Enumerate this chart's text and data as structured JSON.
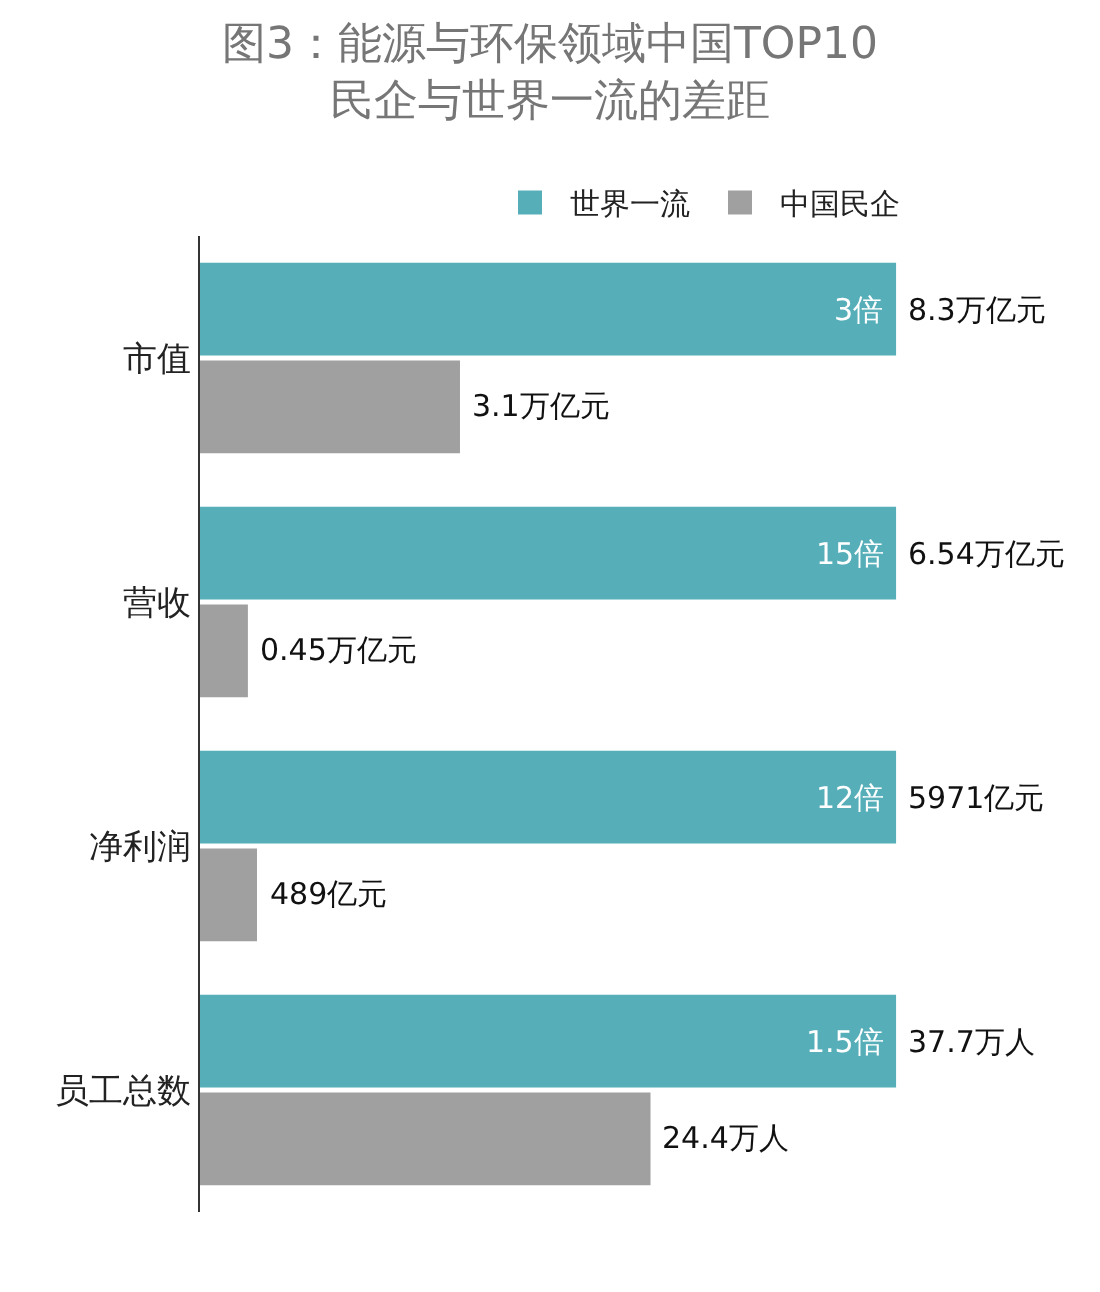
{
  "chart_data": [
    {
      "type": "bar",
      "orientation": "horizontal",
      "title": "图3：能源与环保领域中国TOP10\n民企与世界一流的差距",
      "categories": [
        "市值"
      ],
      "series": [
        {
          "name": "世界一流",
          "color": "#55aeb8",
          "values": [
            8.3
          ],
          "value_labels": [
            "8.3万亿元"
          ]
        },
        {
          "name": "中国民企",
          "color": "#a0a0a0",
          "values": [
            3.1
          ],
          "value_labels": [
            "3.1万亿元"
          ]
        }
      ],
      "annotations": [
        {
          "text": "3倍",
          "x": 8.3,
          "y": "市值"
        }
      ],
      "legend": "top right",
      "tick_labels": "y"
    },
    {
      "type": "bar",
      "orientation": "horizontal",
      "categories": [
        "营收"
      ],
      "series": [
        {
          "color": "#55aeb8",
          "values": [
            6.54
          ],
          "value_labels": [
            "6.54万亿元"
          ]
        },
        {
          "color": "#a0a0a0",
          "values": [
            0.45
          ],
          "value_labels": [
            "0.45万亿元"
          ]
        }
      ],
      "annotations": [
        {
          "text": "15倍",
          "x": 6.54,
          "y": "营收"
        }
      ],
      "tick_labels": "y"
    },
    {
      "type": "bar",
      "orientation": "horizontal",
      "categories": [
        "净利润"
      ],
      "series": [
        {
          "color": "#55aeb8",
          "values": [
            5971
          ],
          "value_labels": [
            "5971亿元"
          ]
        },
        {
          "color": "#a0a0a0",
          "values": [
            489
          ],
          "value_labels": [
            "489亿元"
          ]
        }
      ],
      "annotations": [
        {
          "text": "12倍",
          "x": 5971,
          "y": "净利润"
        }
      ],
      "tick_labels": "y"
    },
    {
      "type": "bar",
      "orientation": "horizontal",
      "categories": [
        "员工总数"
      ],
      "series": [
        {
          "color": "#55aeb8",
          "values": [
            37.7
          ],
          "value_labels": [
            "37.7万人"
          ]
        },
        {
          "color": "#a0a0a0",
          "values": [
            24.4
          ],
          "value_labels": [
            "24.4万人"
          ]
        }
      ],
      "annotations": [
        {
          "text": "1.5倍",
          "x": 37.7,
          "y": "员工总数"
        }
      ],
      "tick_labels": "y"
    }
  ]
}
